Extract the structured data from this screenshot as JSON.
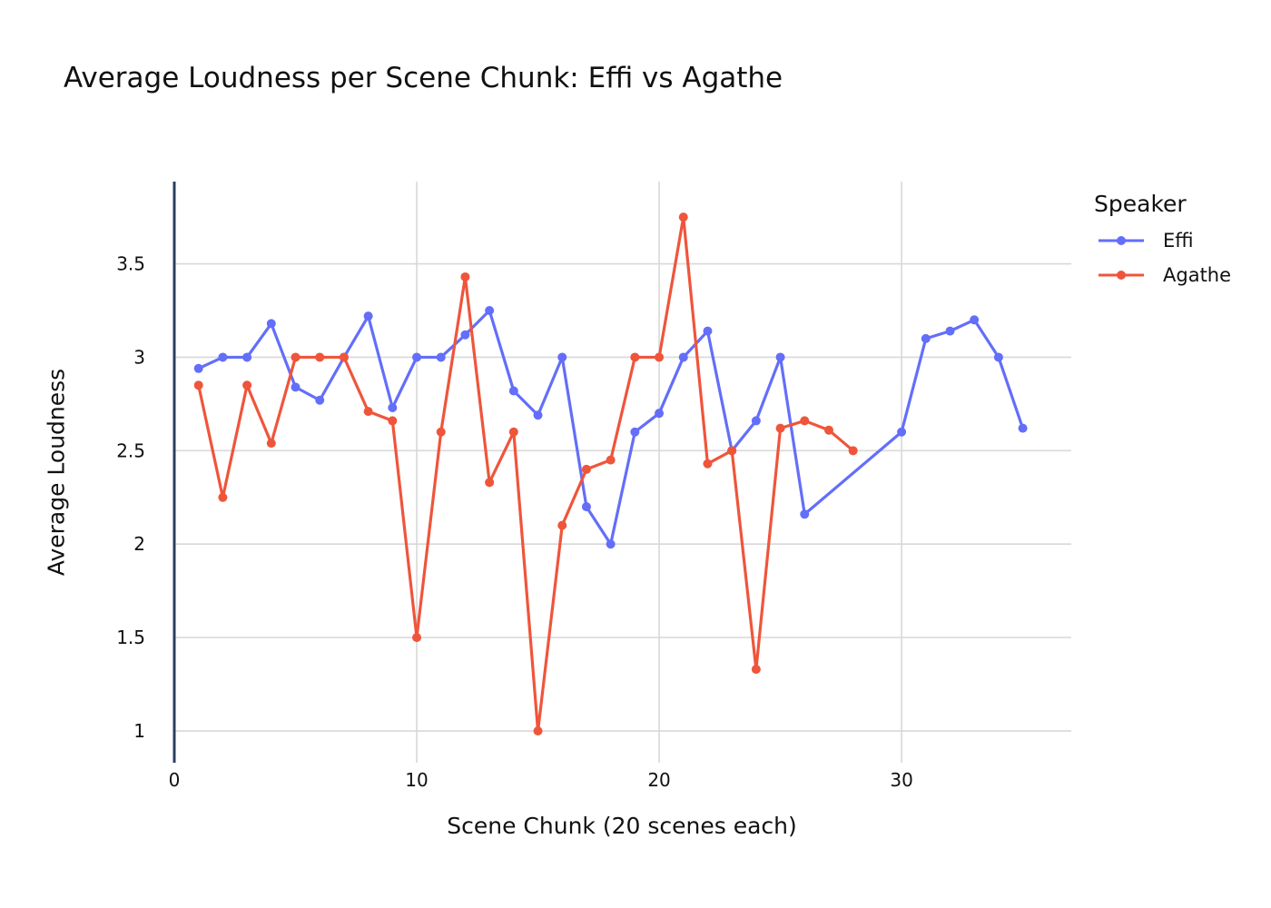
{
  "chart_data": {
    "type": "line",
    "title": "Average Loudness per Scene Chunk: Effi vs Agathe",
    "xlabel": "Scene Chunk (20 scenes each)",
    "ylabel": "Average Loudness",
    "xlim": [
      0,
      37
    ],
    "ylim": [
      0.83,
      3.94
    ],
    "x_ticks": [
      0,
      10,
      20,
      30
    ],
    "y_ticks": [
      1,
      1.5,
      2,
      2.5,
      3,
      3.5
    ],
    "y_tick_labels": [
      "1",
      "1.5",
      "2",
      "2.5",
      "3",
      "3.5"
    ],
    "x_tick_labels": [
      "0",
      "10",
      "20",
      "30"
    ],
    "grid": true,
    "legend": {
      "title": "Speaker",
      "position": "right"
    },
    "series": [
      {
        "name": "Effi",
        "color": "#636efa",
        "x": [
          1,
          2,
          3,
          4,
          5,
          6,
          7,
          8,
          9,
          10,
          11,
          12,
          13,
          14,
          15,
          16,
          17,
          18,
          19,
          20,
          21,
          22,
          23,
          24,
          25,
          26,
          30,
          31,
          32,
          33,
          34,
          35
        ],
        "y": [
          2.94,
          3.0,
          3.0,
          3.18,
          2.84,
          2.77,
          3.0,
          3.22,
          2.73,
          3.0,
          3.0,
          3.12,
          3.25,
          2.82,
          2.69,
          3.0,
          2.2,
          2.0,
          2.6,
          2.7,
          3.0,
          3.14,
          2.5,
          2.66,
          3.0,
          2.16,
          2.6,
          3.1,
          3.14,
          3.2,
          3.0,
          2.62
        ]
      },
      {
        "name": "Agathe",
        "color": "#ef553b",
        "x": [
          1,
          2,
          3,
          4,
          5,
          6,
          7,
          8,
          9,
          10,
          11,
          12,
          13,
          14,
          15,
          16,
          17,
          18,
          19,
          20,
          21,
          22,
          23,
          24,
          25,
          26,
          27,
          28
        ],
        "y": [
          2.85,
          2.25,
          2.85,
          2.54,
          3.0,
          3.0,
          3.0,
          2.71,
          2.66,
          1.5,
          2.6,
          3.43,
          2.33,
          2.6,
          1.0,
          2.1,
          2.4,
          2.45,
          3.0,
          3.0,
          3.75,
          2.43,
          2.5,
          1.33,
          2.62,
          2.66,
          2.61,
          2.5
        ]
      }
    ]
  }
}
